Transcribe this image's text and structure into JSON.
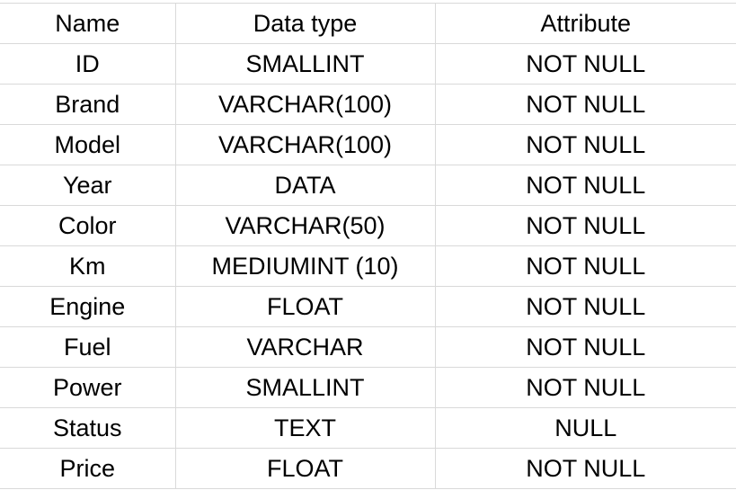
{
  "header": {
    "name": "Name",
    "data_type": "Data type",
    "attribute": "Attribute"
  },
  "rows": [
    {
      "name": "ID",
      "data_type": "SMALLINT",
      "attribute": "NOT NULL"
    },
    {
      "name": "Brand",
      "data_type": "VARCHAR(100)",
      "attribute": "NOT NULL"
    },
    {
      "name": "Model",
      "data_type": "VARCHAR(100)",
      "attribute": "NOT NULL"
    },
    {
      "name": "Year",
      "data_type": "DATA",
      "attribute": "NOT NULL"
    },
    {
      "name": "Color",
      "data_type": "VARCHAR(50)",
      "attribute": "NOT NULL"
    },
    {
      "name": "Km",
      "data_type": "MEDIUMINT (10)",
      "attribute": "NOT NULL"
    },
    {
      "name": "Engine",
      "data_type": "FLOAT",
      "attribute": "NOT NULL"
    },
    {
      "name": "Fuel",
      "data_type": "VARCHAR",
      "attribute": "NOT NULL"
    },
    {
      "name": "Power",
      "data_type": "SMALLINT",
      "attribute": "NOT NULL"
    },
    {
      "name": "Status",
      "data_type": "TEXT",
      "attribute": "NULL"
    },
    {
      "name": "Price",
      "data_type": "FLOAT",
      "attribute": "NOT NULL"
    }
  ]
}
